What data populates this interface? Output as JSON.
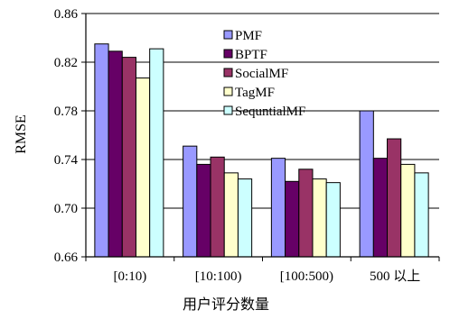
{
  "chart_data": {
    "type": "bar",
    "categories": [
      "[0:10)",
      "[10:100)",
      "[100:500)",
      "500 以上"
    ],
    "series": [
      {
        "name": "PMF",
        "values": [
          0.835,
          0.751,
          0.741,
          0.78
        ],
        "color": "#9999ff"
      },
      {
        "name": "BPTF",
        "values": [
          0.829,
          0.736,
          0.722,
          0.741
        ],
        "color": "#660066"
      },
      {
        "name": "SocialMF",
        "values": [
          0.824,
          0.742,
          0.732,
          0.757
        ],
        "color": "#993366"
      },
      {
        "name": "TagMF",
        "values": [
          0.807,
          0.729,
          0.724,
          0.736
        ],
        "color": "#ffffcc"
      },
      {
        "name": "SequntialMF",
        "values": [
          0.831,
          0.724,
          0.721,
          0.729
        ],
        "color": "#ccffff"
      }
    ],
    "xlabel": "用户评分数量",
    "ylabel": "RMSE",
    "ylim": [
      0.66,
      0.86
    ],
    "yticks": [
      "0.66",
      "0.70",
      "0.74",
      "0.78",
      "0.82",
      "0.86"
    ],
    "grid": true,
    "legend_position": "top-right"
  }
}
